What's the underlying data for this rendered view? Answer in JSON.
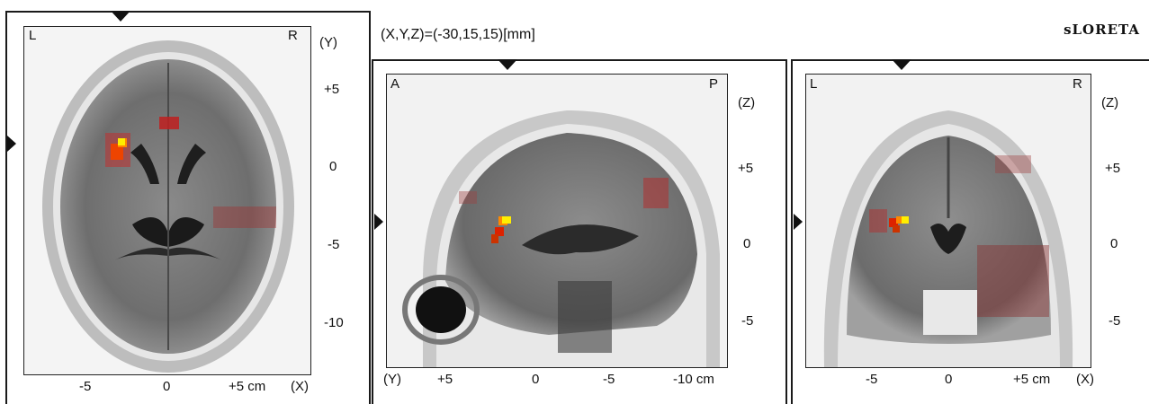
{
  "header": {
    "coordinates": "(X,Y,Z)=(-30,15,15)[mm]",
    "method": "sLORETA"
  },
  "axial": {
    "corner_left": "L",
    "corner_right": "R",
    "axis_right_title": "(Y)",
    "axis_right_ticks": [
      "+5",
      "0",
      "-5",
      "-10"
    ],
    "axis_bottom_ticks": [
      "-5",
      "0",
      "+5 cm"
    ],
    "axis_bottom_title": "(X)"
  },
  "sagittal": {
    "corner_left": "A",
    "corner_right": "P",
    "axis_right_title": "(Z)",
    "axis_right_ticks": [
      "+5",
      "0",
      "-5"
    ],
    "axis_bottom_title": "(Y)",
    "axis_bottom_ticks": [
      "+5",
      "0",
      "-5",
      "-10 cm"
    ]
  },
  "coronal": {
    "corner_left": "L",
    "corner_right": "R",
    "axis_right_title": "(Z)",
    "axis_right_ticks": [
      "+5",
      "0",
      "-5"
    ],
    "axis_bottom_ticks": [
      "-5",
      "0",
      "+5 cm"
    ],
    "axis_bottom_title": "(X)"
  },
  "colors": {
    "activation_max": "#ffee00",
    "activation_high": "#ff8800",
    "activation_mid": "#dd2200",
    "activation_low": "#a02020"
  }
}
